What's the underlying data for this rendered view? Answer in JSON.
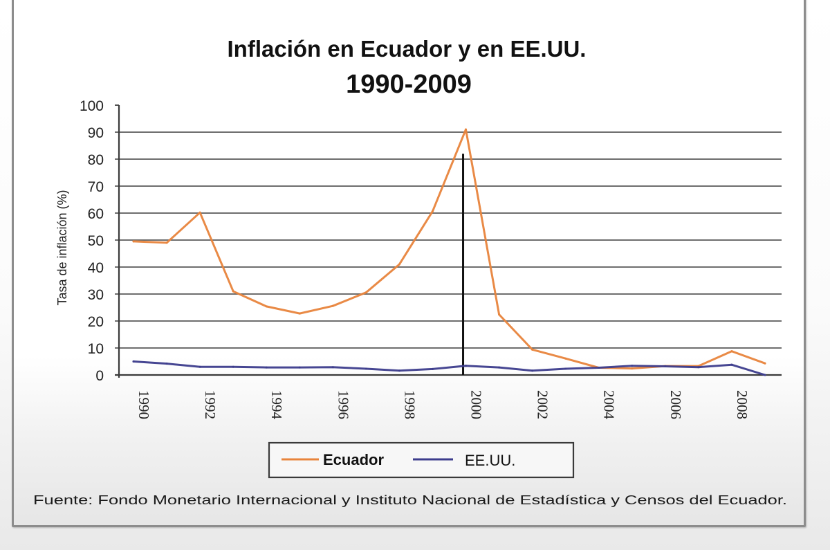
{
  "chart_data": {
    "type": "line",
    "title": "Inflación en Ecuador y en EE.UU.",
    "subtitle": "1990-2009",
    "xlabel": "",
    "ylabel": "Tasa de inflación (%)",
    "ylim": [
      0,
      100
    ],
    "yticks": [
      0,
      10,
      20,
      30,
      40,
      50,
      60,
      70,
      80,
      90,
      100
    ],
    "ytick_labels": [
      "0",
      "10",
      "20",
      "30",
      "40",
      "50",
      "60",
      "70",
      "80",
      "90",
      "100"
    ],
    "xlim": [
      1990,
      2009
    ],
    "xticks": [
      1990,
      1992,
      1994,
      1996,
      1998,
      2000,
      2002,
      2004,
      2006,
      2008
    ],
    "xtick_labels": [
      "1990",
      "1992",
      "1994",
      "1996",
      "1998",
      "2000",
      "2002",
      "2004",
      "2006",
      "2008"
    ],
    "grid": "horizontal",
    "x": [
      1990,
      1991,
      1992,
      1993,
      1994,
      1995,
      1996,
      1997,
      1998,
      1999,
      2000,
      2001,
      2002,
      2003,
      2004,
      2005,
      2006,
      2007,
      2008,
      2009
    ],
    "series": [
      {
        "name": "Ecuador",
        "color": "#e8843c",
        "values": [
          49.5,
          49.0,
          60.2,
          31.0,
          25.4,
          22.8,
          25.6,
          30.6,
          41.0,
          60.7,
          91.0,
          22.4,
          9.4,
          6.1,
          2.7,
          2.4,
          3.3,
          3.3,
          8.8,
          4.3
        ]
      },
      {
        "name": "EE.UU.",
        "color": "#3c3c8c",
        "values": [
          5.0,
          4.2,
          3.0,
          3.0,
          2.8,
          2.8,
          2.9,
          2.3,
          1.6,
          2.2,
          3.4,
          2.8,
          1.6,
          2.3,
          2.7,
          3.4,
          3.2,
          2.9,
          3.8,
          -0.3
        ]
      }
    ],
    "annotations": [
      {
        "type": "vertical-line",
        "x": 2000,
        "y_from": 0,
        "y_to": 82,
        "color": "#111111"
      }
    ],
    "legend": {
      "position": "bottom-center",
      "entries": [
        "Ecuador",
        "EE.UU."
      ]
    },
    "source": "Fuente: Fondo Monetario Internacional y Instituto Nacional de Estadística y Censos del Ecuador."
  }
}
